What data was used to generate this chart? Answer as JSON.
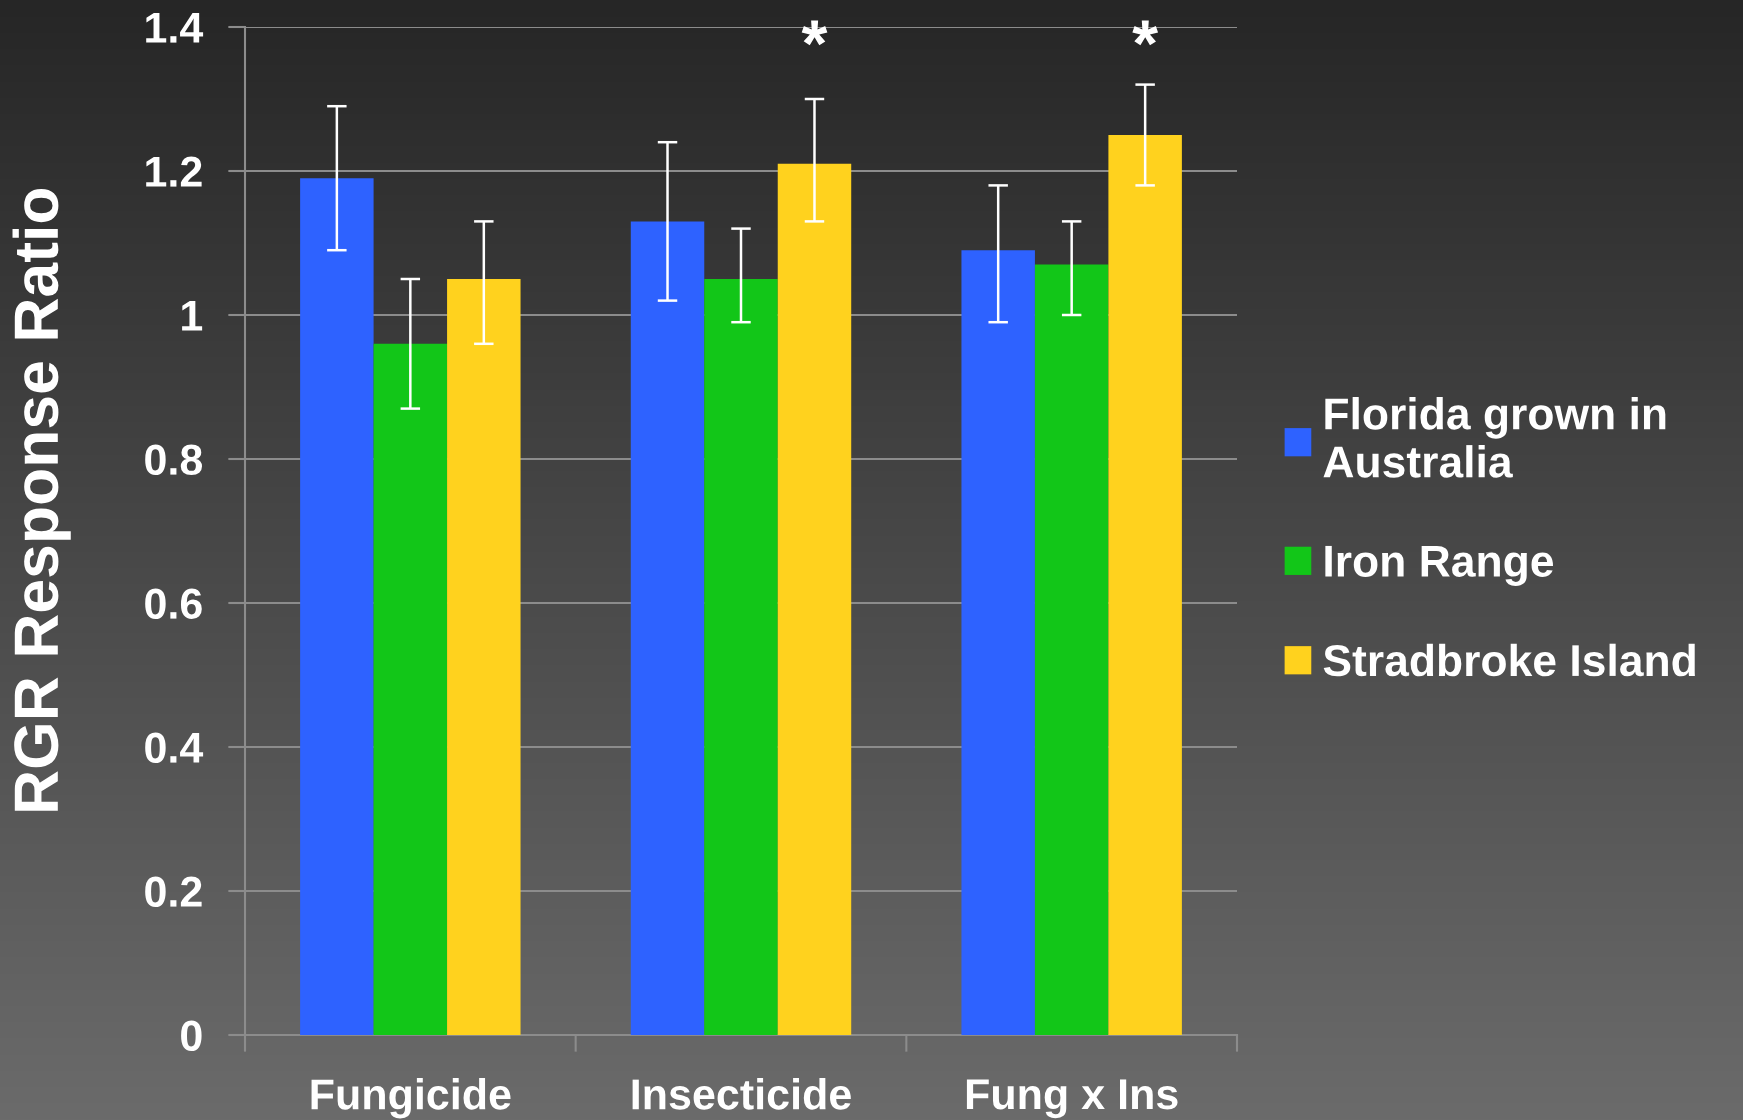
{
  "chart_data": {
    "type": "bar",
    "ylabel": "RGR Response Ratio",
    "categories": [
      "Fungicide",
      "Insecticide",
      "Fung x Ins"
    ],
    "series": [
      {
        "name": "Florida grown in\nAustralia",
        "color": "#2e62ff",
        "values": [
          1.19,
          1.13,
          1.09
        ],
        "errors": [
          [
            1.09,
            1.29
          ],
          [
            1.02,
            1.24
          ],
          [
            0.99,
            1.18
          ]
        ]
      },
      {
        "name": "Iron Range",
        "color": "#12c618",
        "values": [
          0.96,
          1.05,
          1.07
        ],
        "errors": [
          [
            0.87,
            1.05
          ],
          [
            0.99,
            1.12
          ],
          [
            1.0,
            1.13
          ]
        ]
      },
      {
        "name": "Stradbroke Island",
        "color": "#ffd21e",
        "values": [
          1.05,
          1.21,
          1.25
        ],
        "errors": [
          [
            0.96,
            1.13
          ],
          [
            1.13,
            1.3
          ],
          [
            1.18,
            1.32
          ]
        ]
      }
    ],
    "ylim": [
      0,
      1.4
    ],
    "yticks": [
      0,
      0.2,
      0.4,
      0.6,
      0.8,
      1,
      1.2,
      1.4
    ],
    "grid": "y",
    "legend": "right",
    "annotations": [
      "*",
      "*"
    ]
  }
}
